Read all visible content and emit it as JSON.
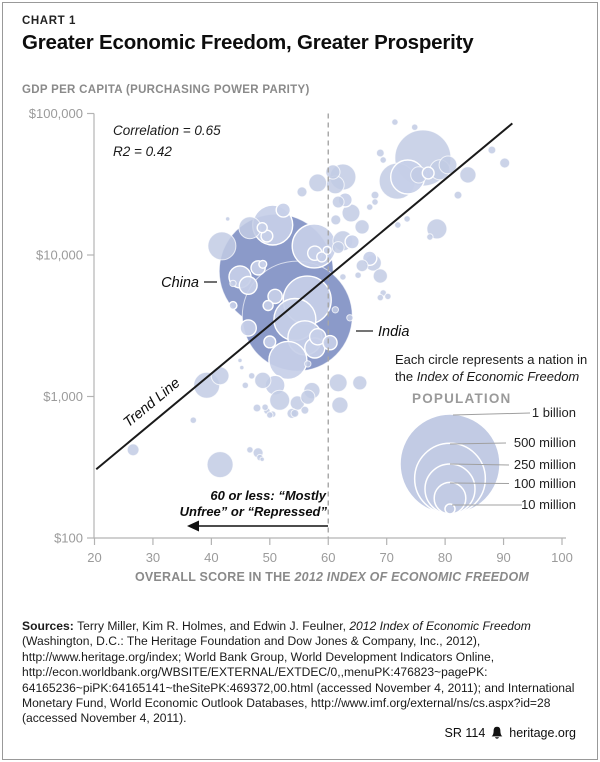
{
  "header": {
    "chart_label": "CHART 1",
    "title": "Greater Economic Freedom, Greater Prosperity",
    "y_axis_title": "GDP PER CAPITA (PURCHASING POWER PARITY)"
  },
  "annotations": {
    "correlation": "Correlation = 0.65",
    "r2": "R2 = 0.42",
    "trend": "Trend Line",
    "china": "China",
    "india": "India",
    "threshold_line1": "60 or less: “Mostly",
    "threshold_line2": "Unfree” or “Repressed”"
  },
  "axis": {
    "x_label_regular": "OVERALL SCORE IN THE ",
    "x_label_italic": "2012 INDEX OF ECONOMIC FREEDOM",
    "x_ticks": [
      20,
      30,
      40,
      50,
      60,
      70,
      80,
      90,
      100
    ],
    "y_ticks": [
      {
        "label": "$100",
        "value": 100
      },
      {
        "label": "$1,000",
        "value": 1000
      },
      {
        "label": "$10,000",
        "value": 10000
      },
      {
        "label": "$100,000",
        "value": 100000
      }
    ]
  },
  "legend": {
    "note_line1": "Each circle represents a nation in",
    "note_line2_prefix": "the ",
    "note_line2_italic": "Index of Economic Freedom",
    "population_title": "POPULATION",
    "entries": [
      {
        "label": "1 billion",
        "pop": 1000
      },
      {
        "label": "500 million",
        "pop": 500
      },
      {
        "label": "250 million",
        "pop": 250
      },
      {
        "label": "100 million",
        "pop": 100
      },
      {
        "label": "10 million",
        "pop": 10
      }
    ]
  },
  "colors": {
    "bubble_light": "#c2cbe4",
    "bubble_dark": "#8b9ac9",
    "bubble_ring_fill": "#c7cfe8",
    "trend_line": "#1a1a1a",
    "axis_gray": "#b3b3b3",
    "tick_text_gray": "#9b9b9b"
  },
  "chart_data": {
    "type": "scatter",
    "title": "Greater Economic Freedom, Greater Prosperity",
    "xlabel": "OVERALL SCORE IN THE 2012 INDEX OF ECONOMIC FREEDOM",
    "ylabel": "GDP PER CAPITA (PURCHASING POWER PARITY)",
    "x_range": [
      20,
      100
    ],
    "y_range": [
      100,
      100000
    ],
    "y_scale": "log",
    "correlation": 0.65,
    "r_squared": 0.42,
    "threshold_score": 60,
    "trend_line": {
      "x1": 20.3,
      "y1": 306,
      "x2": 91.5,
      "y2": 85100
    },
    "bubbles": [
      {
        "s": 51.1,
        "g": 7700,
        "p": 1300,
        "t": "dark",
        "label": "China"
      },
      {
        "s": 54.7,
        "g": 3700,
        "p": 1210,
        "t": "dark",
        "label": "India"
      },
      {
        "s": 50.5,
        "g": 16300,
        "p": 160,
        "t": "ring"
      },
      {
        "s": 57.6,
        "g": 11600,
        "p": 194,
        "t": "ring"
      },
      {
        "s": 56.4,
        "g": 4800,
        "p": 230,
        "t": "ring"
      },
      {
        "s": 54.3,
        "g": 3500,
        "p": 176,
        "t": "ring"
      },
      {
        "s": 56.0,
        "g": 2600,
        "p": 116,
        "t": "ring"
      },
      {
        "s": 53.1,
        "g": 1800,
        "p": 144,
        "t": "ring"
      },
      {
        "s": 76.2,
        "g": 48500,
        "p": 314,
        "t": "light"
      },
      {
        "s": 71.8,
        "g": 33300,
        "p": 130,
        "t": "light"
      },
      {
        "s": 73.6,
        "g": 35600,
        "p": 116,
        "t": "ring"
      },
      {
        "s": 62.5,
        "g": 35600,
        "p": 68,
        "t": "light"
      },
      {
        "s": 41.8,
        "g": 11600,
        "p": 78,
        "t": "light"
      },
      {
        "s": 46.6,
        "g": 15600,
        "p": 48,
        "t": "light"
      },
      {
        "s": 44.9,
        "g": 7000,
        "p": 48,
        "t": "ring"
      },
      {
        "s": 39.2,
        "g": 1200,
        "p": 68,
        "t": "light"
      },
      {
        "s": 41.5,
        "g": 330,
        "p": 68,
        "t": "light"
      },
      {
        "s": 41.5,
        "g": 1400,
        "p": 32,
        "t": "light"
      },
      {
        "s": 57.7,
        "g": 2200,
        "p": 40,
        "t": "ring"
      },
      {
        "s": 50.9,
        "g": 1200,
        "p": 40,
        "t": "ring"
      },
      {
        "s": 51.7,
        "g": 940,
        "p": 40,
        "t": "light"
      },
      {
        "s": 62.5,
        "g": 12600,
        "p": 40,
        "t": "light"
      },
      {
        "s": 78.6,
        "g": 15300,
        "p": 40,
        "t": "light"
      },
      {
        "s": 79.1,
        "g": 40000,
        "p": 40,
        "t": "light"
      },
      {
        "s": 80.5,
        "g": 43300,
        "p": 32,
        "t": "light"
      },
      {
        "s": 58.2,
        "g": 32300,
        "p": 32,
        "t": "light"
      },
      {
        "s": 61.2,
        "g": 31300,
        "p": 32,
        "t": "light"
      },
      {
        "s": 63.9,
        "g": 19800,
        "p": 32,
        "t": "light"
      },
      {
        "s": 46.3,
        "g": 6100,
        "p": 32,
        "t": "ring"
      },
      {
        "s": 61.7,
        "g": 1250,
        "p": 32,
        "t": "light"
      },
      {
        "s": 57.2,
        "g": 1100,
        "p": 26,
        "t": "light"
      },
      {
        "s": 48.8,
        "g": 1300,
        "p": 26,
        "t": "light"
      },
      {
        "s": 62.0,
        "g": 870,
        "p": 26,
        "t": "light"
      },
      {
        "s": 58.2,
        "g": 2640,
        "p": 26,
        "t": "ring"
      },
      {
        "s": 46.3,
        "g": 3050,
        "p": 26,
        "t": "ring"
      },
      {
        "s": 83.9,
        "g": 36800,
        "p": 26,
        "t": "light"
      },
      {
        "s": 75.5,
        "g": 36800,
        "p": 26,
        "t": "light"
      },
      {
        "s": 67.7,
        "g": 8800,
        "p": 26,
        "t": "light"
      },
      {
        "s": 52.3,
        "g": 20800,
        "p": 20,
        "t": "ring"
      },
      {
        "s": 50.9,
        "g": 5100,
        "p": 20,
        "t": "ring"
      },
      {
        "s": 60.3,
        "g": 2400,
        "p": 20,
        "t": "ring"
      },
      {
        "s": 62.9,
        "g": 24500,
        "p": 20,
        "t": "ring"
      },
      {
        "s": 64.1,
        "g": 12400,
        "p": 20,
        "t": "ring"
      },
      {
        "s": 57.7,
        "g": 10300,
        "p": 20,
        "t": "ring"
      },
      {
        "s": 67.1,
        "g": 9500,
        "p": 20,
        "t": "ring"
      },
      {
        "s": 65.8,
        "g": 15800,
        "p": 20,
        "t": "light"
      },
      {
        "s": 68.9,
        "g": 7100,
        "p": 20,
        "t": "light"
      },
      {
        "s": 65.4,
        "g": 1250,
        "p": 20,
        "t": "light"
      },
      {
        "s": 54.7,
        "g": 900,
        "p": 20,
        "t": "light"
      },
      {
        "s": 56.5,
        "g": 990,
        "p": 20,
        "t": "light"
      },
      {
        "s": 60.8,
        "g": 38600,
        "p": 20,
        "t": "light"
      },
      {
        "s": 48.0,
        "g": 8100,
        "p": 20,
        "t": "ring"
      },
      {
        "s": 49.5,
        "g": 13600,
        "p": 14,
        "t": "ring"
      },
      {
        "s": 50.0,
        "g": 2430,
        "p": 14,
        "t": "ring"
      },
      {
        "s": 61.7,
        "g": 23700,
        "p": 14,
        "t": "light"
      },
      {
        "s": 61.7,
        "g": 11300,
        "p": 14,
        "t": "light"
      },
      {
        "s": 65.8,
        "g": 8400,
        "p": 14,
        "t": "light"
      },
      {
        "s": 77.1,
        "g": 38000,
        "p": 14,
        "t": "ring"
      },
      {
        "s": 26.6,
        "g": 420,
        "p": 14,
        "t": "light"
      },
      {
        "s": 55.5,
        "g": 27900,
        "p": 10,
        "t": "light"
      },
      {
        "s": 61.3,
        "g": 17700,
        "p": 10,
        "t": "light"
      },
      {
        "s": 58.9,
        "g": 9700,
        "p": 10,
        "t": "ring"
      },
      {
        "s": 49.7,
        "g": 4400,
        "p": 10,
        "t": "ring"
      },
      {
        "s": 48.7,
        "g": 15600,
        "p": 10,
        "t": "ring"
      },
      {
        "s": 53.8,
        "g": 760,
        "p": 10,
        "t": "light"
      },
      {
        "s": 48.0,
        "g": 400,
        "p": 10,
        "t": "light"
      },
      {
        "s": 90.2,
        "g": 44700,
        "p": 10,
        "t": "light"
      },
      {
        "s": 48.8,
        "g": 8600,
        "p": 6,
        "t": "ring"
      },
      {
        "s": 59.8,
        "g": 10800,
        "p": 6,
        "t": "ring"
      },
      {
        "s": 43.7,
        "g": 4400,
        "p": 6,
        "t": "ring"
      },
      {
        "s": 56.0,
        "g": 800,
        "p": 6,
        "t": "light"
      },
      {
        "s": 54.3,
        "g": 760,
        "p": 6,
        "t": "light"
      },
      {
        "s": 47.8,
        "g": 830,
        "p": 6,
        "t": "light"
      },
      {
        "s": 88.0,
        "g": 55200,
        "p": 6,
        "t": "light"
      },
      {
        "s": 82.2,
        "g": 26500,
        "p": 6,
        "t": "light"
      },
      {
        "s": 68.9,
        "g": 52600,
        "p": 6,
        "t": "light"
      },
      {
        "s": 68.0,
        "g": 26500,
        "p": 6,
        "t": "light"
      },
      {
        "s": 71.4,
        "g": 87000,
        "p": 4,
        "t": "light"
      },
      {
        "s": 74.8,
        "g": 80000,
        "p": 4,
        "t": "light"
      },
      {
        "s": 69.4,
        "g": 46900,
        "p": 4,
        "t": "light"
      },
      {
        "s": 67.1,
        "g": 21800,
        "p": 4,
        "t": "light"
      },
      {
        "s": 68.0,
        "g": 23700,
        "p": 4,
        "t": "light"
      },
      {
        "s": 73.5,
        "g": 18000,
        "p": 4,
        "t": "light"
      },
      {
        "s": 71.9,
        "g": 16300,
        "p": 4,
        "t": "light"
      },
      {
        "s": 77.4,
        "g": 13400,
        "p": 4,
        "t": "light"
      },
      {
        "s": 69.4,
        "g": 5400,
        "p": 4,
        "t": "light"
      },
      {
        "s": 68.9,
        "g": 5000,
        "p": 4,
        "t": "light"
      },
      {
        "s": 70.2,
        "g": 5100,
        "p": 4,
        "t": "light"
      },
      {
        "s": 62.5,
        "g": 7000,
        "p": 4,
        "t": "light"
      },
      {
        "s": 65.1,
        "g": 7200,
        "p": 4,
        "t": "light"
      },
      {
        "s": 61.2,
        "g": 4100,
        "p": 4,
        "t": "light"
      },
      {
        "s": 63.7,
        "g": 3600,
        "p": 4,
        "t": "light"
      },
      {
        "s": 56.5,
        "g": 1700,
        "p": 4,
        "t": "light"
      },
      {
        "s": 43.7,
        "g": 6300,
        "p": 4,
        "t": "light"
      },
      {
        "s": 46.9,
        "g": 1400,
        "p": 4,
        "t": "light"
      },
      {
        "s": 45.8,
        "g": 1200,
        "p": 4,
        "t": "light"
      },
      {
        "s": 36.9,
        "g": 680,
        "p": 4,
        "t": "light"
      },
      {
        "s": 49.5,
        "g": 790,
        "p": 4,
        "t": "light"
      },
      {
        "s": 50.5,
        "g": 750,
        "p": 4,
        "t": "light"
      },
      {
        "s": 46.6,
        "g": 420,
        "p": 4,
        "t": "light"
      },
      {
        "s": 48.3,
        "g": 370,
        "p": 4,
        "t": "light"
      },
      {
        "s": 49.2,
        "g": 840,
        "p": 4,
        "t": "light"
      },
      {
        "s": 50.0,
        "g": 740,
        "p": 4,
        "t": "light"
      },
      {
        "s": 42.8,
        "g": 18000,
        "p": 2,
        "t": "light"
      },
      {
        "s": 44.9,
        "g": 1800,
        "p": 2,
        "t": "light"
      },
      {
        "s": 45.2,
        "g": 1600,
        "p": 2,
        "t": "light"
      },
      {
        "s": 48.7,
        "g": 360,
        "p": 2,
        "t": "light"
      }
    ]
  },
  "sources": {
    "lines": [
      [
        {
          "t": "Sources: ",
          "b": true
        },
        {
          "t": "Terry Miller, Kim R. Holmes, and Edwin J. Feulner, "
        },
        {
          "t": "2012 Index of Economic Freedom",
          "i": true
        }
      ],
      [
        {
          "t": "(Washington, D.C.: The Heritage Foundation and Dow Jones & Company, Inc., 2012),"
        }
      ],
      [
        {
          "t": "http://www.heritage.org/index; World Bank Group, World Development Indicators Online,"
        }
      ],
      [
        {
          "t": "http://econ.worldbank.org/WBSITE/EXTERNAL/EXTDEC/0,,menuPK:476823~pagePK:"
        }
      ],
      [
        {
          "t": "64165236~piPK:64165141~theSitePK:469372,00.html (accessed November 4, 2011); and International"
        }
      ],
      [
        {
          "t": "Monetary Fund, World Economic Outlook Databases, http://www.imf.org/external/ns/cs.aspx?id=28"
        }
      ],
      [
        {
          "t": "(accessed November 4, 2011)."
        }
      ]
    ]
  },
  "footer": {
    "report_id": "SR 114",
    "site": "heritage.org"
  }
}
